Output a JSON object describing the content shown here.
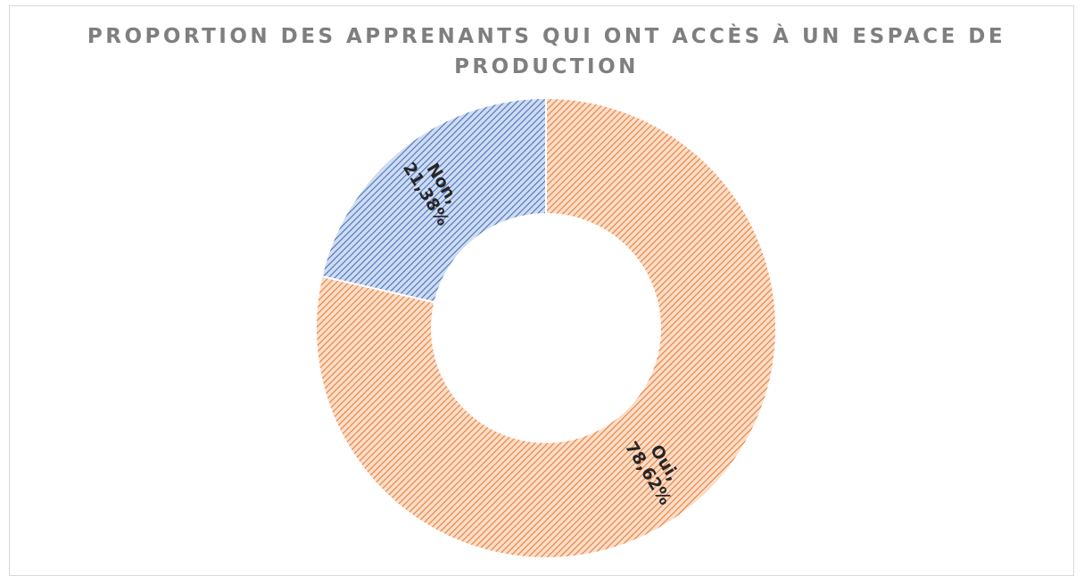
{
  "chart_data": {
    "type": "donut",
    "title": "PROPORTION DES APPRENANTS QUI ONT ACCÈS À UN ESPACE DE PRODUCTION",
    "categories": [
      "Oui",
      "Non"
    ],
    "values": [
      78.62,
      21.38
    ],
    "value_labels": [
      "78,62%",
      "21,38%"
    ],
    "label_separator": ",",
    "colors": [
      "#ed7d31",
      "#4472c4"
    ],
    "hatch": true
  }
}
